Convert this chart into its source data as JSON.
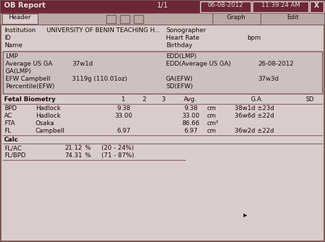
{
  "title": "OB Report",
  "page": "1/1",
  "date": "06-08-2012",
  "time": "11:39:24 AM",
  "institution": "UNIVERSITY OF BENIN TEACHING H...",
  "sonographer": "Sonographer",
  "heart_rate_label": "Heart Rate",
  "heart_rate_unit": "bpm",
  "birthday_label": "Birthday",
  "lmp_label": "LMP",
  "edd_lmp_label": "EDD(LMP)",
  "avg_us_ga_label": "Average US GA",
  "avg_us_ga_value": "37w1d",
  "edd_avg_us_ga_label": "EDD(Average US GA)",
  "edd_avg_us_ga_value": "26-08-2012",
  "ga_lmp_label": "GA(LMP)",
  "efw_label": "EFW Campbell",
  "efw_value": "3119g (110.01oz)",
  "ga_efw_label": "GA(EFW)",
  "ga_efw_value": "37w3d",
  "percentile_label": "Percentile(EFW)",
  "sd_efw_label": "SD(EFW)",
  "fetal_biometry_header": "Fetal Biometry",
  "col1": "1",
  "col2": "2",
  "col3": "3",
  "col_avg": "Avg.",
  "col_ga": "G.A.",
  "col_sd": "SD",
  "biometry_rows": [
    {
      "name": "BPD",
      "method": "Hadlock",
      "m1": "9.38",
      "avg": "9.38",
      "unit": "cm",
      "ga": "38w1d ±23d"
    },
    {
      "name": "AC",
      "method": "Hadlock",
      "m1": "33.00",
      "avg": "33.00",
      "unit": "cm",
      "ga": "36w6d ±22d"
    },
    {
      "name": "FTA",
      "method": "Osaka",
      "m1": "",
      "avg": "86.66",
      "unit": "cm²",
      "ga": ""
    },
    {
      "name": "FL",
      "method": "Campbell",
      "m1": "6.97",
      "avg": "6.97",
      "unit": "cm",
      "ga": "36w2d ±22d"
    }
  ],
  "calc_header": "Calc",
  "calc_rows": [
    {
      "name": "FL/AC",
      "value": "21.12",
      "unit": "%",
      "range": "(20 - 24%)"
    },
    {
      "name": "FL/BPD",
      "value": "74.31",
      "unit": "%",
      "range": "(71 - 87%)"
    }
  ],
  "outer_bg": "#8c6e6e",
  "header_bg": "#6b2737",
  "header_fg": "#e8e0e0",
  "toolbar_bg": "#b8a8a8",
  "content_bg": "#d8cccc",
  "border_color": "#7a5555",
  "text_color": "#1a0808",
  "line_color": "#7a5555",
  "lmp_box_bg": "#ccc0c0"
}
